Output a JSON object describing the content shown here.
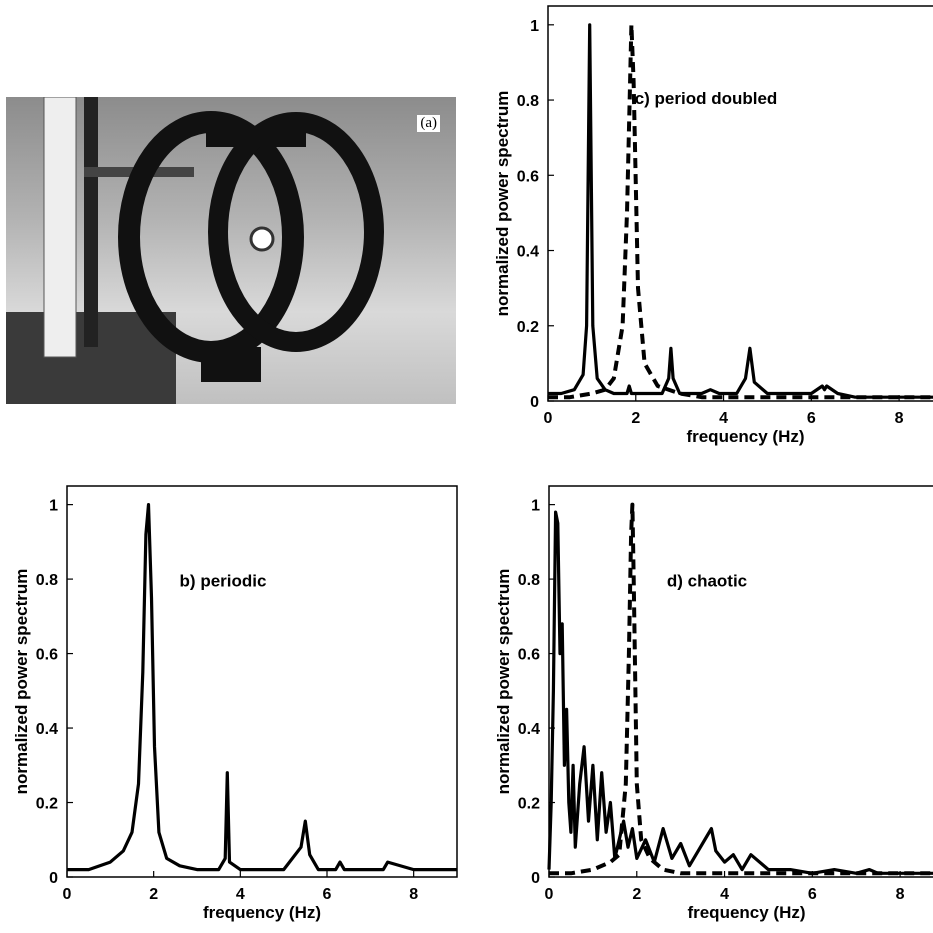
{
  "photo": {
    "label": "(a)"
  },
  "chart_data": [
    {
      "id": "c",
      "type": "line",
      "annotation": "c) period doubled",
      "xlabel": "frequency (Hz)",
      "ylabel": "normalized power spectrum",
      "xlim": [
        0,
        9
      ],
      "ylim": [
        0,
        1.05
      ],
      "xticks": [
        "0",
        "2",
        "4",
        "6",
        "8"
      ],
      "yticks": [
        "0",
        "0.2",
        "0.4",
        "0.6",
        "0.8",
        "1"
      ],
      "series": [
        {
          "style": "solid",
          "x": [
            0,
            0.3,
            0.6,
            0.8,
            0.88,
            0.95,
            1.02,
            1.12,
            1.3,
            1.5,
            1.8,
            1.85,
            1.9,
            2.2,
            2.6,
            2.75,
            2.8,
            2.85,
            3.0,
            3.5,
            3.7,
            3.9,
            4.3,
            4.5,
            4.6,
            4.7,
            5.0,
            5.5,
            6.0,
            6.25,
            6.3,
            6.35,
            6.6,
            7.0,
            7.5,
            8.0,
            8.5,
            9.0
          ],
          "y": [
            0.02,
            0.02,
            0.03,
            0.07,
            0.2,
            1.0,
            0.2,
            0.06,
            0.03,
            0.02,
            0.02,
            0.04,
            0.02,
            0.02,
            0.02,
            0.06,
            0.14,
            0.06,
            0.02,
            0.02,
            0.03,
            0.02,
            0.02,
            0.06,
            0.14,
            0.05,
            0.02,
            0.02,
            0.02,
            0.04,
            0.03,
            0.04,
            0.02,
            0.01,
            0.01,
            0.01,
            0.01,
            0.01
          ]
        },
        {
          "style": "dashed",
          "x": [
            0,
            0.5,
            1.0,
            1.3,
            1.5,
            1.7,
            1.8,
            1.87,
            1.9,
            1.95,
            2.05,
            2.2,
            2.5,
            3.0,
            3.5,
            4.0,
            5.0,
            6.0,
            7.0,
            8.0,
            9.0
          ],
          "y": [
            0.01,
            0.01,
            0.02,
            0.03,
            0.06,
            0.2,
            0.5,
            0.85,
            1.0,
            0.85,
            0.3,
            0.1,
            0.04,
            0.02,
            0.01,
            0.01,
            0.01,
            0.01,
            0.01,
            0.01,
            0.01
          ]
        }
      ]
    },
    {
      "id": "b",
      "type": "line",
      "annotation": "b) periodic",
      "xlabel": "frequency (Hz)",
      "ylabel": "normalized power spectrum",
      "xlim": [
        0,
        9
      ],
      "ylim": [
        0,
        1.05
      ],
      "xticks": [
        "0",
        "2",
        "4",
        "6",
        "8"
      ],
      "yticks": [
        "0",
        "0.2",
        "0.4",
        "0.6",
        "0.8",
        "1"
      ],
      "series": [
        {
          "style": "solid",
          "x": [
            0,
            0.5,
            1.0,
            1.3,
            1.5,
            1.65,
            1.75,
            1.82,
            1.88,
            1.95,
            2.02,
            2.12,
            2.3,
            2.6,
            3.0,
            3.5,
            3.65,
            3.7,
            3.75,
            4.0,
            4.5,
            5.0,
            5.4,
            5.5,
            5.6,
            5.8,
            6.2,
            6.3,
            6.4,
            7.0,
            7.3,
            7.4,
            8.0,
            8.5,
            9.0
          ],
          "y": [
            0.02,
            0.02,
            0.04,
            0.07,
            0.12,
            0.25,
            0.55,
            0.92,
            1.0,
            0.75,
            0.35,
            0.12,
            0.05,
            0.03,
            0.02,
            0.02,
            0.05,
            0.28,
            0.04,
            0.02,
            0.02,
            0.02,
            0.08,
            0.15,
            0.06,
            0.02,
            0.02,
            0.04,
            0.02,
            0.02,
            0.02,
            0.04,
            0.02,
            0.02,
            0.02
          ]
        }
      ]
    },
    {
      "id": "d",
      "type": "line",
      "annotation": "d) chaotic",
      "xlabel": "frequency (Hz)",
      "ylabel": "normalized power spectrum",
      "xlim": [
        0,
        9
      ],
      "ylim": [
        0,
        1.05
      ],
      "xticks": [
        "0",
        "2",
        "4",
        "6",
        "8"
      ],
      "yticks": [
        "0",
        "0.2",
        "0.4",
        "0.6",
        "0.8",
        "1"
      ],
      "series": [
        {
          "style": "solid",
          "x": [
            0,
            0.05,
            0.1,
            0.15,
            0.2,
            0.25,
            0.3,
            0.35,
            0.4,
            0.45,
            0.5,
            0.55,
            0.6,
            0.7,
            0.8,
            0.9,
            1.0,
            1.1,
            1.2,
            1.3,
            1.4,
            1.5,
            1.6,
            1.7,
            1.8,
            1.9,
            2.0,
            2.2,
            2.4,
            2.6,
            2.8,
            3.0,
            3.2,
            3.4,
            3.6,
            3.7,
            3.8,
            4.0,
            4.2,
            4.4,
            4.6,
            5.0,
            5.5,
            6.0,
            6.5,
            7.0,
            7.3,
            7.5,
            8.0,
            8.5,
            9.0
          ],
          "y": [
            0.02,
            0.2,
            0.5,
            0.98,
            0.95,
            0.6,
            0.68,
            0.3,
            0.45,
            0.2,
            0.12,
            0.3,
            0.08,
            0.25,
            0.35,
            0.15,
            0.3,
            0.1,
            0.28,
            0.12,
            0.2,
            0.05,
            0.1,
            0.15,
            0.08,
            0.13,
            0.05,
            0.1,
            0.04,
            0.13,
            0.05,
            0.09,
            0.03,
            0.07,
            0.11,
            0.13,
            0.07,
            0.04,
            0.06,
            0.02,
            0.06,
            0.02,
            0.02,
            0.01,
            0.02,
            0.01,
            0.02,
            0.01,
            0.01,
            0.01,
            0.01
          ]
        },
        {
          "style": "dashed",
          "x": [
            0,
            0.5,
            1.0,
            1.4,
            1.6,
            1.75,
            1.82,
            1.87,
            1.9,
            1.93,
            2.0,
            2.1,
            2.3,
            2.6,
            3.0,
            3.5,
            4.0,
            5.0,
            6.0,
            7.0,
            8.0,
            9.0
          ],
          "y": [
            0.01,
            0.01,
            0.02,
            0.04,
            0.06,
            0.25,
            0.6,
            0.92,
            1.0,
            0.8,
            0.25,
            0.1,
            0.05,
            0.02,
            0.01,
            0.01,
            0.01,
            0.01,
            0.01,
            0.01,
            0.01,
            0.01
          ]
        }
      ]
    }
  ]
}
